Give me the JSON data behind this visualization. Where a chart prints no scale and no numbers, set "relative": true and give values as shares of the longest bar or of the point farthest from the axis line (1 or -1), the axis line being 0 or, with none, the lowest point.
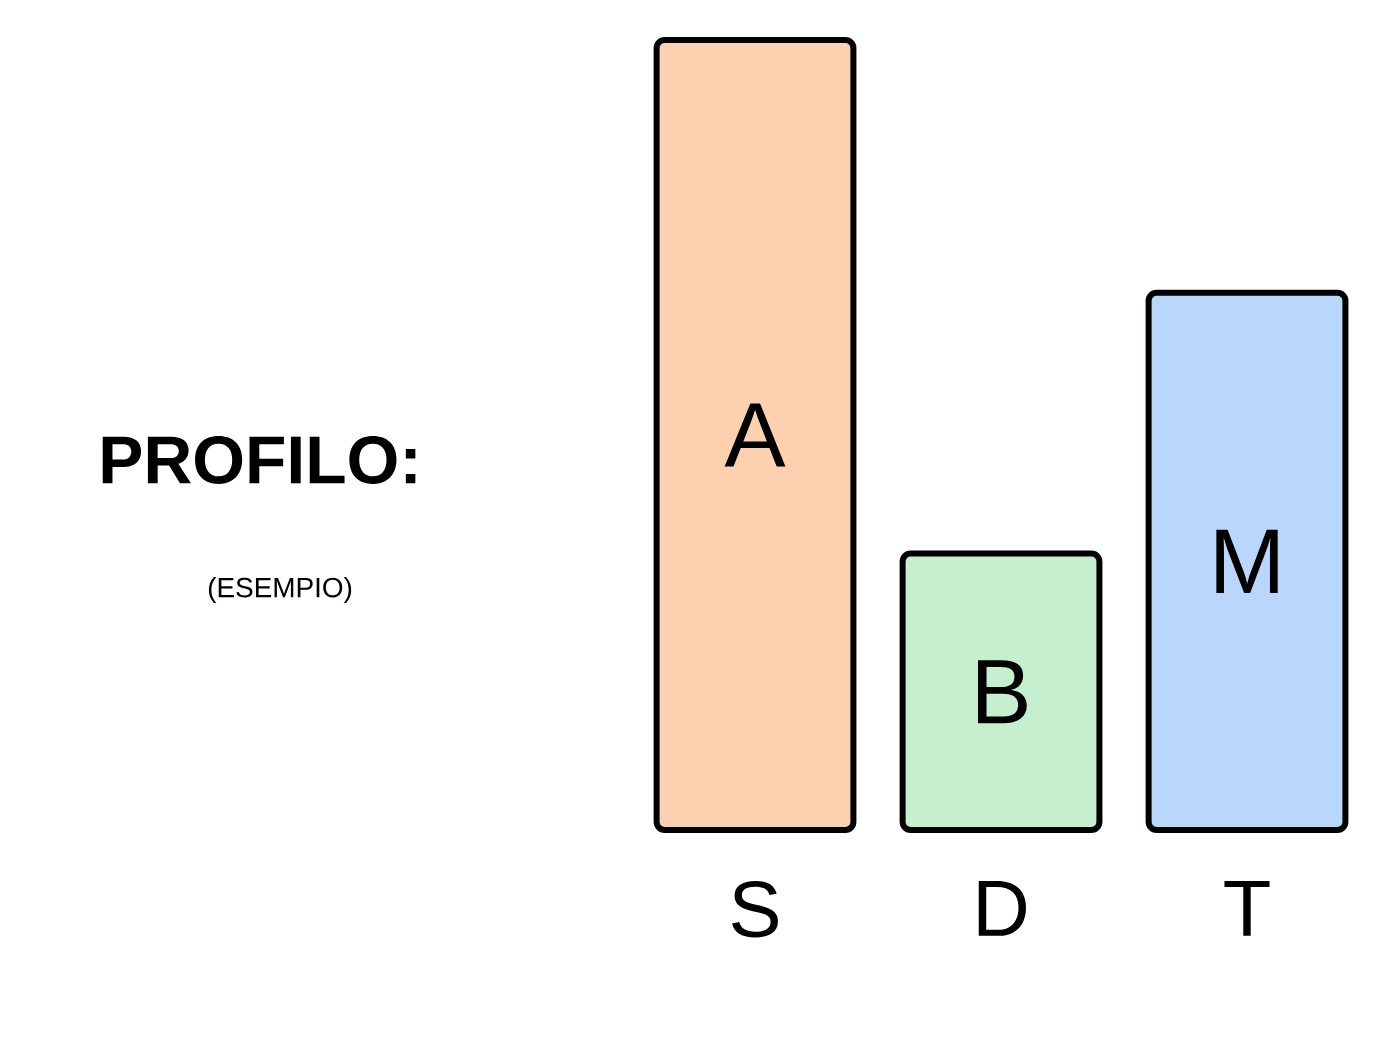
{
  "chart_data": {
    "type": "bar",
    "title": "PROFILO:",
    "subtitle": "(ESEMPIO)",
    "relative": true,
    "categories": [
      "S",
      "D",
      "T"
    ],
    "values": [
      1,
      0.35,
      0.68
    ],
    "colors": [
      "#fdd0b0",
      "#c6efd0",
      "#b9d7fb"
    ],
    "annotations": [
      "A",
      "B",
      "M"
    ]
  }
}
